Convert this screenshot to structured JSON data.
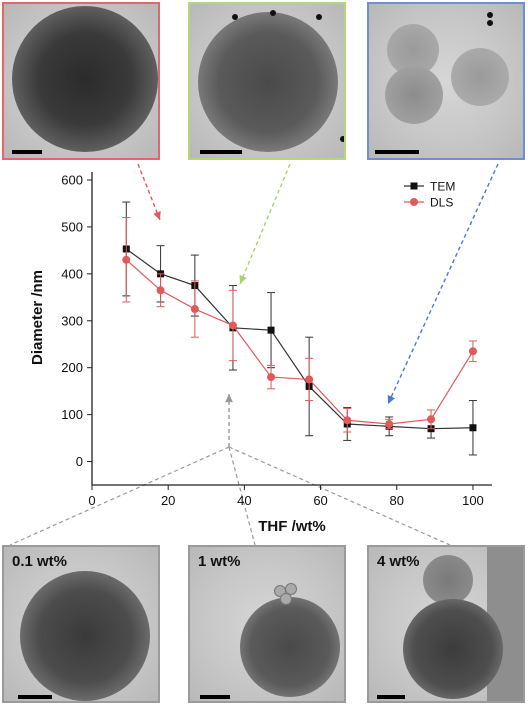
{
  "colors": {
    "panel_red": "#e0686b",
    "panel_green": "#b4d77a",
    "panel_blue": "#6f8fd0",
    "panel_gray": "#9a9a9a",
    "tem_series": "#333333",
    "dls_series": "#e05a5a",
    "arrow_red": "#e05a5a",
    "arrow_green": "#a8d468",
    "arrow_blue": "#4a7ad0",
    "arrow_gray": "#999999"
  },
  "bottom_panels": {
    "p1_label": "0.1 wt%",
    "p2_label": "1 wt%",
    "p3_label": "4 wt%"
  },
  "chart_data": {
    "type": "line",
    "xlabel": "THF /wt%",
    "ylabel": "Diameter /nm",
    "xlim": [
      0,
      105
    ],
    "ylim": [
      -50,
      600
    ],
    "xticks": [
      0,
      20,
      40,
      60,
      80,
      100
    ],
    "yticks": [
      0,
      100,
      200,
      300,
      400,
      500,
      600
    ],
    "legend_position": "top-right",
    "grid": false,
    "series": [
      {
        "name": "TEM",
        "marker": "square",
        "x": [
          9,
          18,
          27,
          37,
          47,
          57,
          67,
          78,
          89,
          100
        ],
        "y": [
          453,
          400,
          375,
          285,
          280,
          160,
          80,
          75,
          70,
          72
        ],
        "err": [
          100,
          60,
          65,
          90,
          80,
          105,
          35,
          20,
          20,
          58
        ]
      },
      {
        "name": "DLS",
        "marker": "circle",
        "x": [
          9,
          18,
          27,
          37,
          47,
          57,
          67,
          78,
          89,
          100
        ],
        "y": [
          430,
          365,
          325,
          290,
          180,
          175,
          88,
          80,
          90,
          235
        ],
        "err": [
          90,
          35,
          60,
          75,
          25,
          45,
          25,
          10,
          20,
          22
        ]
      }
    ]
  }
}
